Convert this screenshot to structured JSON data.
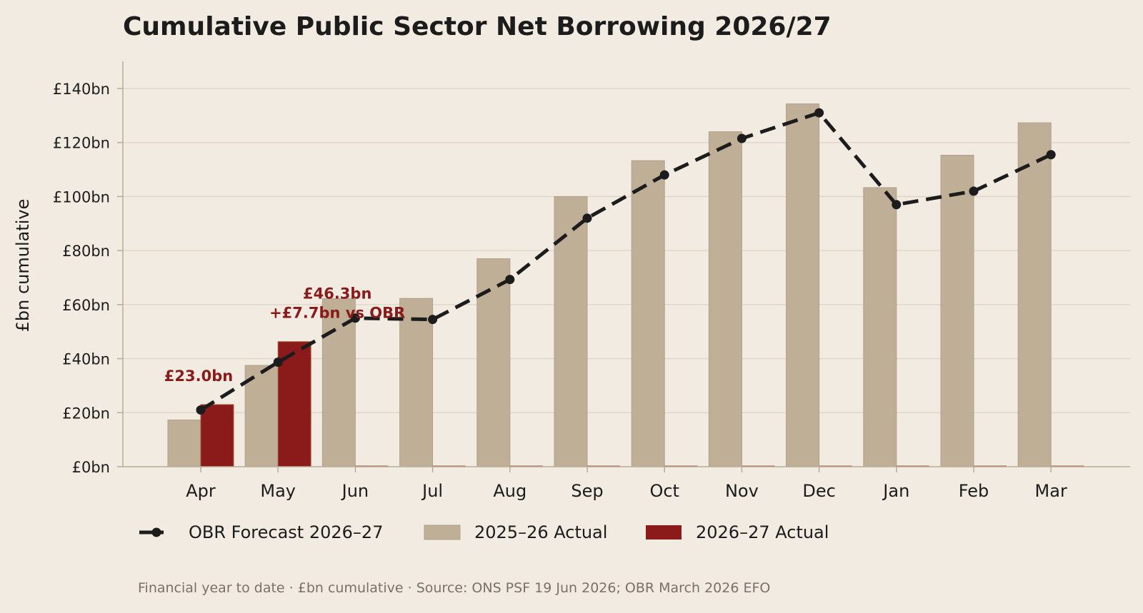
{
  "chart_data": {
    "type": "bar",
    "title": "Cumulative Public Sector Net Borrowing 2026/27",
    "xlabel": "",
    "ylabel": "£bn cumulative",
    "ylim": [
      0,
      150
    ],
    "yticks": [
      0,
      20,
      40,
      60,
      80,
      100,
      120,
      140
    ],
    "ytick_labels": [
      "£0bn",
      "£20bn",
      "£40bn",
      "£60bn",
      "£80bn",
      "£100bn",
      "£120bn",
      "£140bn"
    ],
    "categories": [
      "Apr",
      "May",
      "Jun",
      "Jul",
      "Aug",
      "Sep",
      "Oct",
      "Nov",
      "Dec",
      "Jan",
      "Feb",
      "Mar"
    ],
    "series": [
      {
        "name": "OBR Forecast 2026–27",
        "kind": "line",
        "style": "dashed",
        "color": "#1c1c1c",
        "values": [
          21.0,
          38.7,
          55.0,
          54.5,
          69.3,
          92.0,
          108.0,
          121.5,
          131.0,
          97.0,
          102.0,
          115.5
        ]
      },
      {
        "name": "2025–26 Actual",
        "kind": "bar",
        "color": "#c0af97",
        "values": [
          17.3,
          37.5,
          62.2,
          62.3,
          77.0,
          100.0,
          113.3,
          124.0,
          134.3,
          103.3,
          115.3,
          127.3
        ]
      },
      {
        "name": "2026–27 Actual",
        "kind": "bar",
        "color": "#8b1a1a",
        "values": [
          23.0,
          46.3,
          null,
          null,
          null,
          null,
          null,
          null,
          null,
          null,
          null,
          null
        ]
      }
    ],
    "annotations": [
      {
        "category": "Apr",
        "lines": [
          "£23.0bn"
        ]
      },
      {
        "category": "May",
        "lines": [
          "£46.3bn",
          "+£7.7bn vs OBR"
        ]
      }
    ],
    "legend": {
      "placement": "bottom-left"
    },
    "grid": "horizontal",
    "footnote": "Financial year to date · £bn cumulative · Source: ONS PSF 19 Jun 2026; OBR March 2026 EFO"
  }
}
